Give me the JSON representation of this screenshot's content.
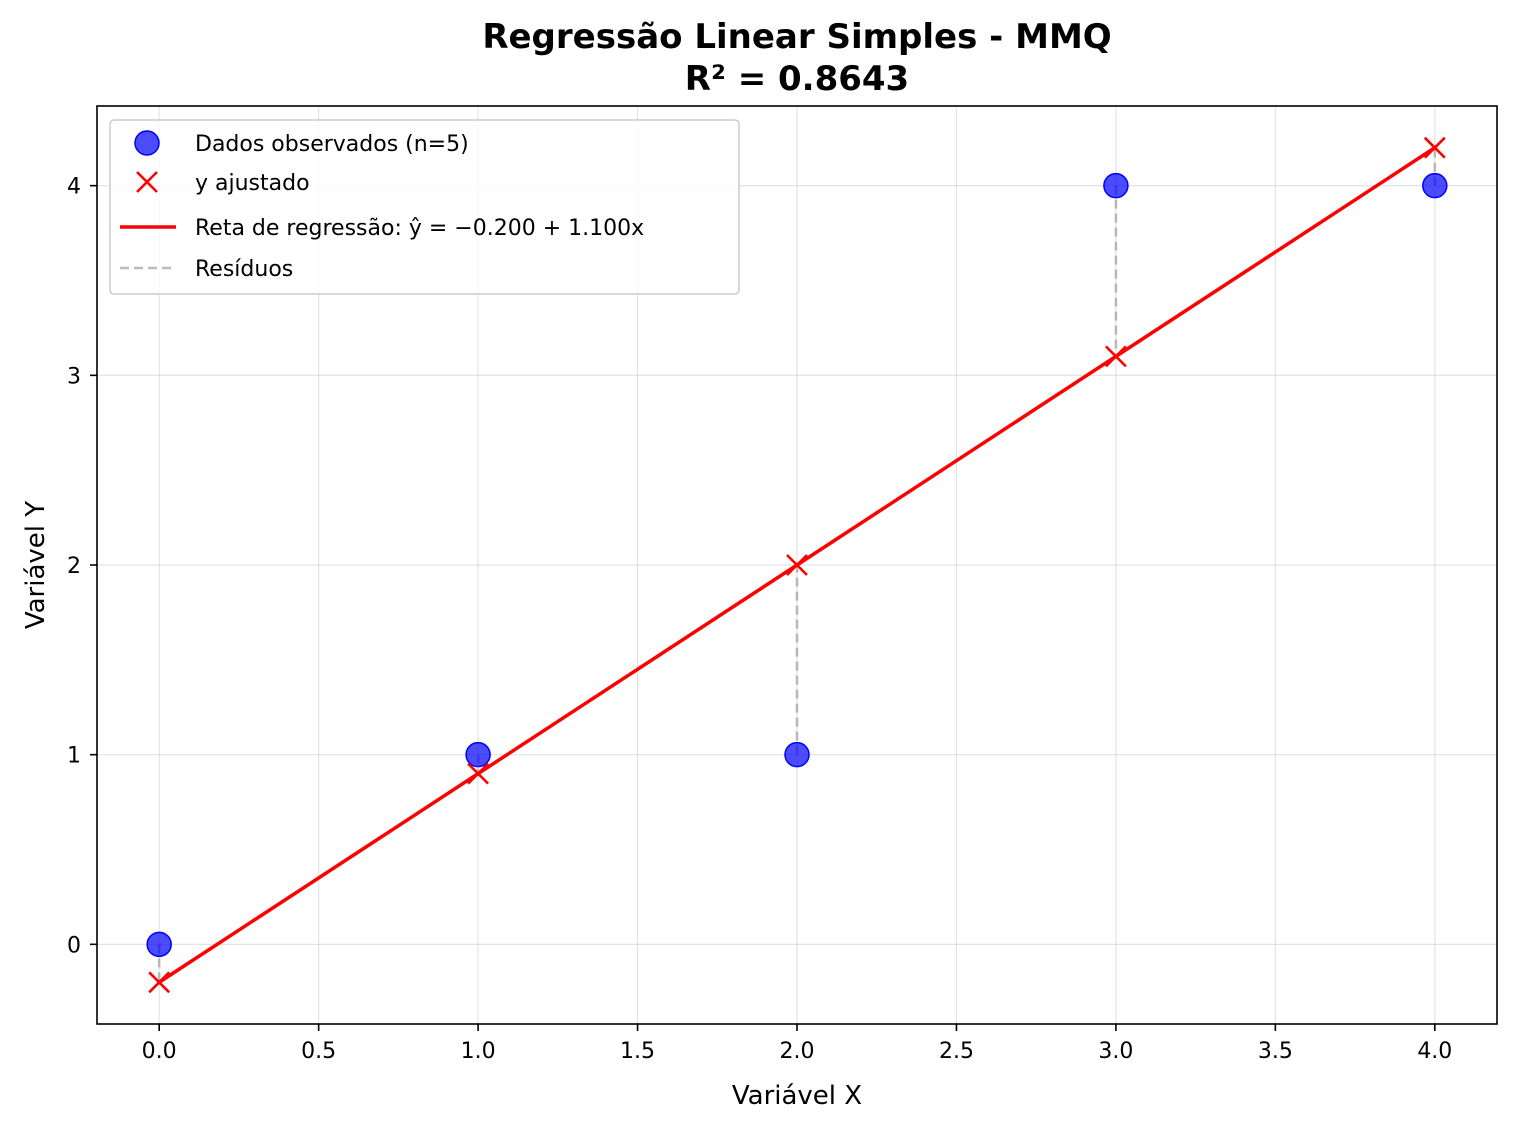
{
  "chart_data": {
    "type": "scatter",
    "title": "Regressão Linear Simples - MMQ",
    "subtitle": "R² = 0.8643",
    "xlabel": "Variável X",
    "ylabel": "Variável Y",
    "xlim": [
      -0.195,
      4.195
    ],
    "ylim": [
      -0.42,
      4.42
    ],
    "x_ticks": [
      0.0,
      0.5,
      1.0,
      1.5,
      2.0,
      2.5,
      3.0,
      3.5,
      4.0
    ],
    "x_tick_labels": [
      "0.0",
      "0.5",
      "1.0",
      "1.5",
      "2.0",
      "2.5",
      "3.0",
      "3.5",
      "4.0"
    ],
    "y_ticks": [
      0,
      1,
      2,
      3,
      4
    ],
    "y_tick_labels": [
      "0",
      "1",
      "2",
      "3",
      "4"
    ],
    "grid": true,
    "legend_position": "top-left",
    "regression": {
      "intercept": -0.2,
      "slope": 1.1
    },
    "series": [
      {
        "name": "Dados observados (n=5)",
        "kind": "scatter",
        "marker": "circle",
        "color": "#0000ff",
        "x": [
          0,
          1,
          2,
          3,
          4
        ],
        "y": [
          0,
          1,
          1,
          4,
          4
        ]
      },
      {
        "name": "y ajustado",
        "kind": "scatter",
        "marker": "x",
        "color": "#ff0000",
        "x": [
          0,
          1,
          2,
          3,
          4
        ],
        "y": [
          -0.2,
          0.9,
          2.0,
          3.1,
          4.2
        ]
      },
      {
        "name": "Reta de regressão: ŷ = −0.200 + 1.100x",
        "kind": "line",
        "color": "#ff0000",
        "x": [
          0,
          4
        ],
        "y": [
          -0.2,
          4.2
        ]
      },
      {
        "name": "Resíduos",
        "kind": "residuals",
        "color": "#a0a0a0",
        "x": [
          0,
          1,
          2,
          3,
          4
        ],
        "y_from": [
          0,
          1,
          1,
          4,
          4
        ],
        "y_to": [
          -0.2,
          0.9,
          2.0,
          3.1,
          4.2
        ]
      }
    ]
  }
}
